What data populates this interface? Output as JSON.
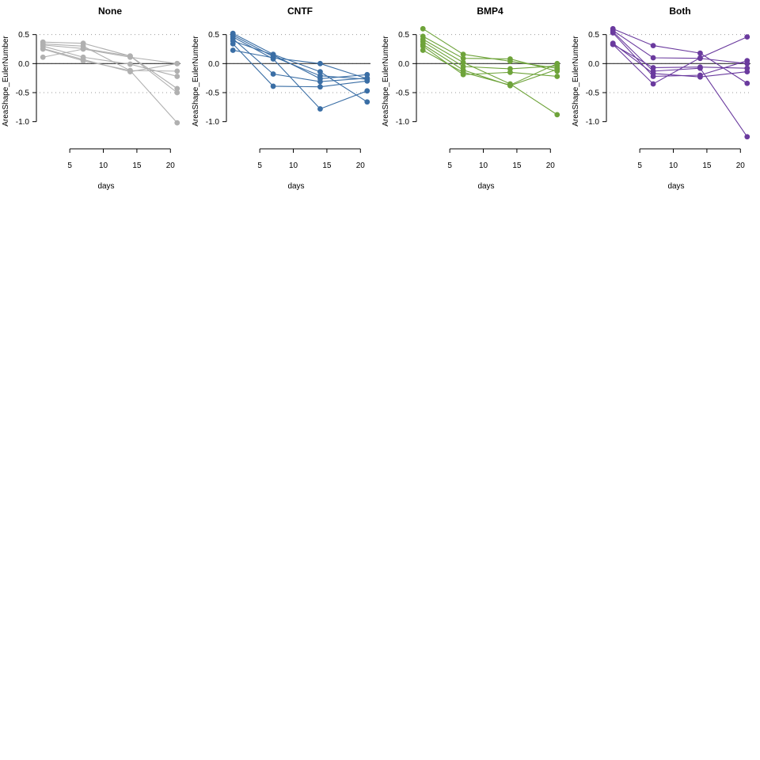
{
  "chart_data": [
    {
      "type": "line",
      "title": "None",
      "xlabel": "days",
      "ylabel": "AreaShape_EulerNumber",
      "color": "#b0b0b0",
      "xlim": [
        0.5,
        21.5
      ],
      "ylim": [
        -1.1,
        0.55
      ],
      "xticks": [
        5,
        10,
        15,
        20
      ],
      "yticks": [
        -1.0,
        -0.5,
        0.0,
        0.5
      ],
      "ytick_labels": [
        "-1.0",
        "-0.5",
        "0.0",
        "0.5"
      ],
      "xtick_labels": [
        "5",
        "10",
        "15",
        "20"
      ],
      "reference_line_y": 0,
      "dotted_grid_y": [
        -0.5,
        0.0,
        0.5
      ],
      "x": [
        1,
        7,
        14,
        21
      ],
      "series": [
        {
          "values": [
            0.37,
            0.35,
            0.13,
            -0.43
          ]
        },
        {
          "values": [
            0.34,
            0.3,
            -0.12,
            -1.02
          ]
        },
        {
          "values": [
            0.32,
            0.26,
            0.13,
            -0.5
          ]
        },
        {
          "values": [
            0.3,
            0.11,
            -0.01,
            -0.22
          ]
        },
        {
          "values": [
            0.26,
            0.07,
            -0.14,
            0.0
          ]
        },
        {
          "values": [
            0.25,
            0.05,
            -0.12,
            -0.13
          ]
        },
        {
          "values": [
            0.11,
            0.25,
            0.11,
            0.0
          ]
        }
      ]
    },
    {
      "type": "line",
      "title": "CNTF",
      "xlabel": "days",
      "ylabel": "AreaShape_EulerNumber",
      "color": "#3a6ea5",
      "xlim": [
        0.5,
        21.5
      ],
      "ylim": [
        -1.1,
        0.55
      ],
      "xticks": [
        5,
        10,
        15,
        20
      ],
      "yticks": [
        -1.0,
        -0.5,
        0.0,
        0.5
      ],
      "ytick_labels": [
        "-1.0",
        "-0.5",
        "0.0",
        "0.5"
      ],
      "xtick_labels": [
        "5",
        "10",
        "15",
        "20"
      ],
      "reference_line_y": 0,
      "dotted_grid_y": [
        -0.5,
        0.0,
        0.5
      ],
      "x": [
        1,
        7,
        14,
        21
      ],
      "series": [
        {
          "values": [
            0.52,
            0.16,
            -0.14,
            -0.66
          ]
        },
        {
          "values": [
            0.49,
            0.12,
            -0.21,
            -0.27
          ]
        },
        {
          "values": [
            0.46,
            0.08,
            -0.78,
            -0.47
          ]
        },
        {
          "values": [
            0.43,
            -0.18,
            -0.31,
            -0.25
          ]
        },
        {
          "values": [
            0.39,
            0.15,
            -0.26,
            -0.19
          ]
        },
        {
          "values": [
            0.34,
            -0.39,
            -0.4,
            -0.3
          ]
        },
        {
          "values": [
            0.23,
            0.1,
            0.0,
            -0.26
          ]
        }
      ]
    },
    {
      "type": "line",
      "title": "BMP4",
      "xlabel": "days",
      "ylabel": "AreaShape_EulerNumber",
      "color": "#6ea33a",
      "xlim": [
        0.5,
        21.5
      ],
      "ylim": [
        -1.1,
        0.55
      ],
      "xticks": [
        5,
        10,
        15,
        20
      ],
      "yticks": [
        -1.0,
        -0.5,
        0.0,
        0.5
      ],
      "ytick_labels": [
        "-1.0",
        "-0.5",
        "0.0",
        "0.5"
      ],
      "xtick_labels": [
        "5",
        "10",
        "15",
        "20"
      ],
      "reference_line_y": 0,
      "dotted_grid_y": [
        -0.5,
        0.0,
        0.5
      ],
      "x": [
        1,
        7,
        14,
        21
      ],
      "series": [
        {
          "values": [
            0.6,
            0.16,
            0.04,
            -0.08
          ]
        },
        {
          "values": [
            0.47,
            0.09,
            0.08,
            -0.13
          ]
        },
        {
          "values": [
            0.42,
            0.02,
            -0.35,
            -0.88
          ]
        },
        {
          "values": [
            0.38,
            -0.05,
            -0.09,
            -0.04
          ]
        },
        {
          "values": [
            0.33,
            -0.11,
            -0.38,
            -0.1
          ]
        },
        {
          "values": [
            0.3,
            -0.19,
            -0.15,
            -0.22
          ]
        },
        {
          "values": [
            0.23,
            -0.15,
            -0.37,
            0.0
          ]
        }
      ]
    },
    {
      "type": "line",
      "title": "Both",
      "xlabel": "days",
      "ylabel": "AreaShape_EulerNumber",
      "color": "#6a3a9e",
      "xlim": [
        0.5,
        21.5
      ],
      "ylim": [
        -1.1,
        0.55
      ],
      "xticks": [
        5,
        10,
        15,
        20
      ],
      "yticks": [
        -1.0,
        -0.5,
        0.0,
        0.5
      ],
      "ytick_labels": [
        "-1.0",
        "-0.5",
        "0.0",
        "0.5"
      ],
      "xtick_labels": [
        "5",
        "10",
        "15",
        "20"
      ],
      "reference_line_y": 0,
      "dotted_grid_y": [
        -0.5,
        0.0,
        0.5
      ],
      "x": [
        1,
        7,
        14,
        21
      ],
      "series": [
        {
          "values": [
            0.6,
            0.31,
            0.18,
            -0.34
          ]
        },
        {
          "values": [
            0.57,
            0.1,
            0.09,
            0.0
          ]
        },
        {
          "values": [
            0.55,
            -0.13,
            -0.08,
            -1.26
          ]
        },
        {
          "values": [
            0.53,
            -0.22,
            -0.2,
            0.05
          ]
        },
        {
          "values": [
            0.35,
            -0.17,
            -0.23,
            -0.14
          ]
        },
        {
          "values": [
            0.33,
            -0.35,
            0.1,
            0.46
          ]
        },
        {
          "values": [
            0.33,
            -0.07,
            -0.06,
            -0.08
          ]
        }
      ]
    }
  ]
}
